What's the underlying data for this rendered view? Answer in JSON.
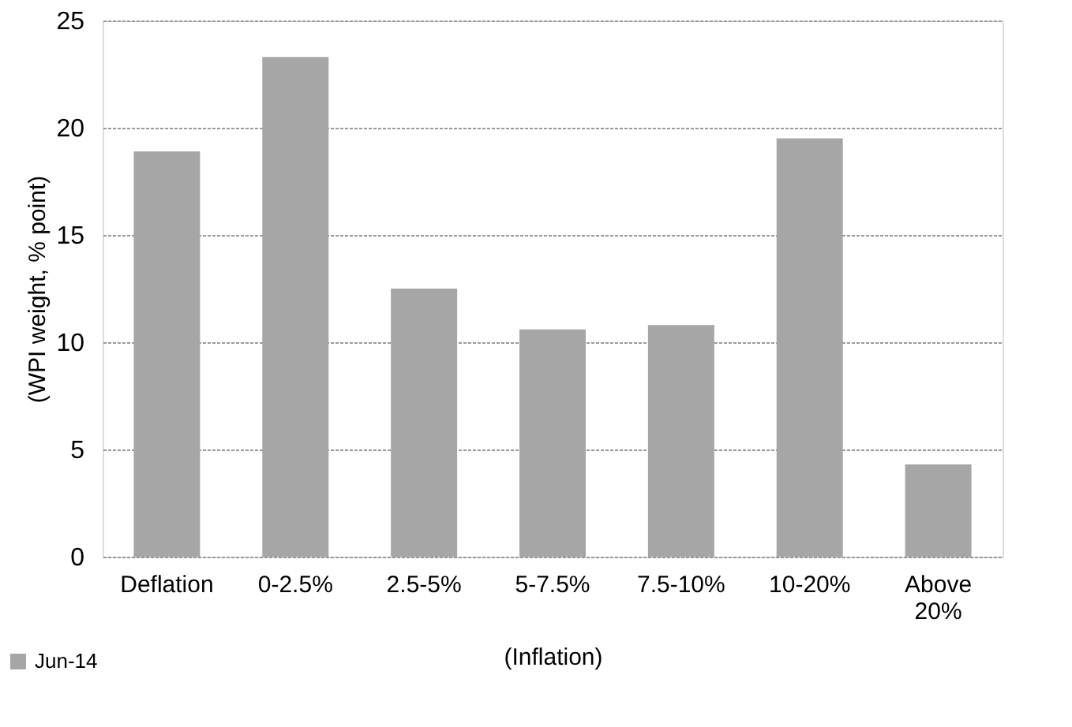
{
  "chart_data": {
    "type": "bar",
    "xlabel": "(Inflation)",
    "ylabel": "(WPI weight, % point)",
    "categories": [
      "Deflation",
      "0-2.5%",
      "2.5-5%",
      "5-7.5%",
      "7.5-10%",
      "10-20%",
      "Above 20%"
    ],
    "series": [
      {
        "name": "Jun-14",
        "color": "#a6a6a6",
        "values": [
          18.9,
          23.3,
          12.5,
          10.6,
          10.8,
          19.5,
          4.3
        ]
      }
    ],
    "ylim": [
      0,
      25
    ],
    "yticks": [
      0,
      5,
      10,
      15,
      20,
      25
    ],
    "grid": "y",
    "legend": "bottom left"
  }
}
